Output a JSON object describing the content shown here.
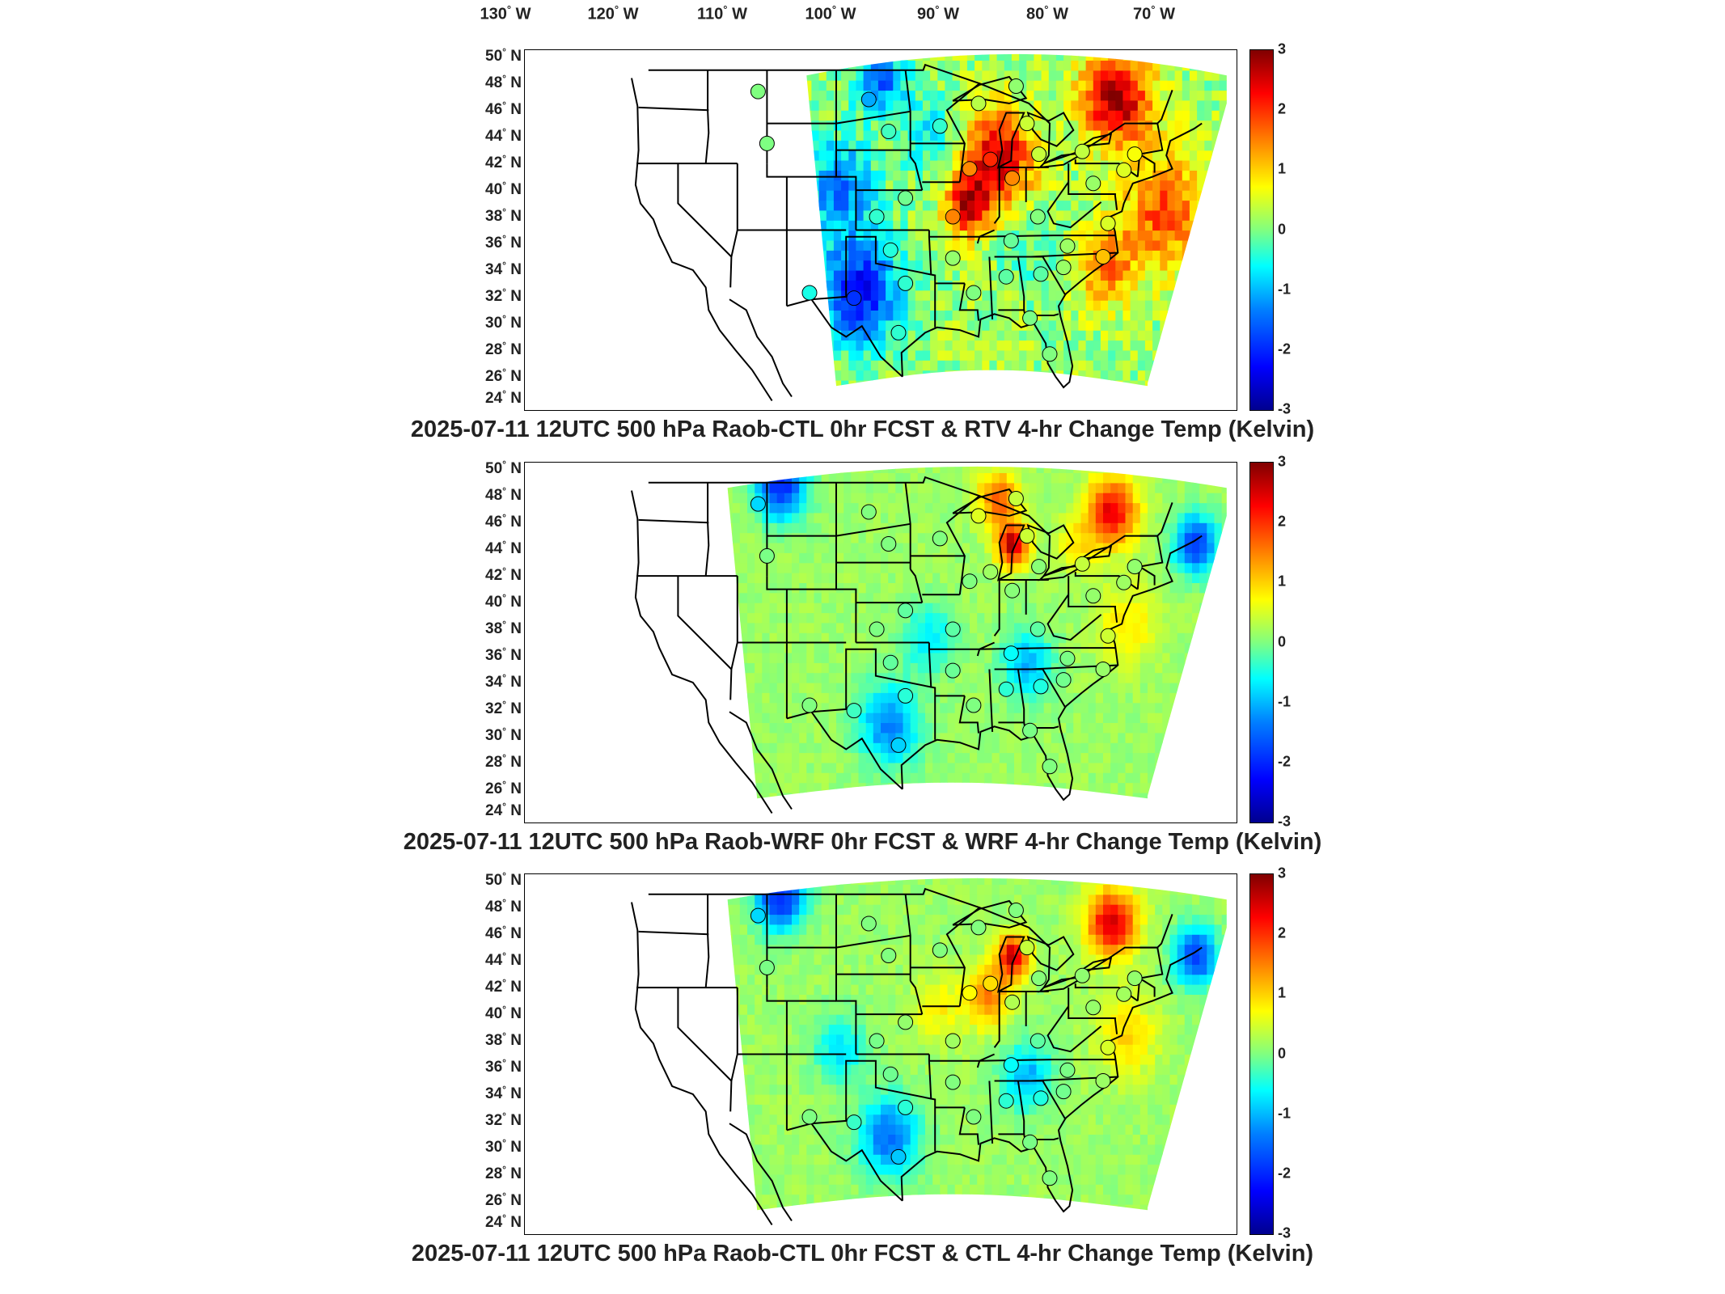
{
  "lon_labels": [
    "130",
    "120",
    "110",
    "100",
    "90",
    "80",
    "70"
  ],
  "lon_suffix": "W",
  "lat_labels": [
    "50",
    "48",
    "46",
    "44",
    "42",
    "40",
    "38",
    "36",
    "34",
    "32",
    "30",
    "28",
    "26",
    "24"
  ],
  "lat_suffix": "N",
  "colorbar": {
    "ticks": [
      "3",
      "2",
      "1",
      "0",
      "-1",
      "-2",
      "-3"
    ],
    "min": -3,
    "max": 3,
    "unit": "Kelvin"
  },
  "panels": [
    {
      "title": "2025-07-11 12UTC 500 hPa Raob-CTL 0hr FCST & RTV 4-hr Change Temp (Kelvin)",
      "field": "RTV 4-hr change",
      "western_edge_lon": -107
    },
    {
      "title": "2025-07-11 12UTC 500 hPa Raob-WRF 0hr FCST & WRF 4-hr Change Temp (Kelvin)",
      "field": "WRF 4-hr change",
      "western_edge_lon": -115
    },
    {
      "title": "2025-07-11 12UTC 500 hPa Raob-CTL 0hr FCST & CTL 4-hr Change Temp (Kelvin)",
      "field": "CTL 4-hr change",
      "western_edge_lon": -115
    }
  ],
  "colors": {
    "cold": "#0000ff",
    "neutral": "#80ff80",
    "warm": "#ff0000"
  }
}
